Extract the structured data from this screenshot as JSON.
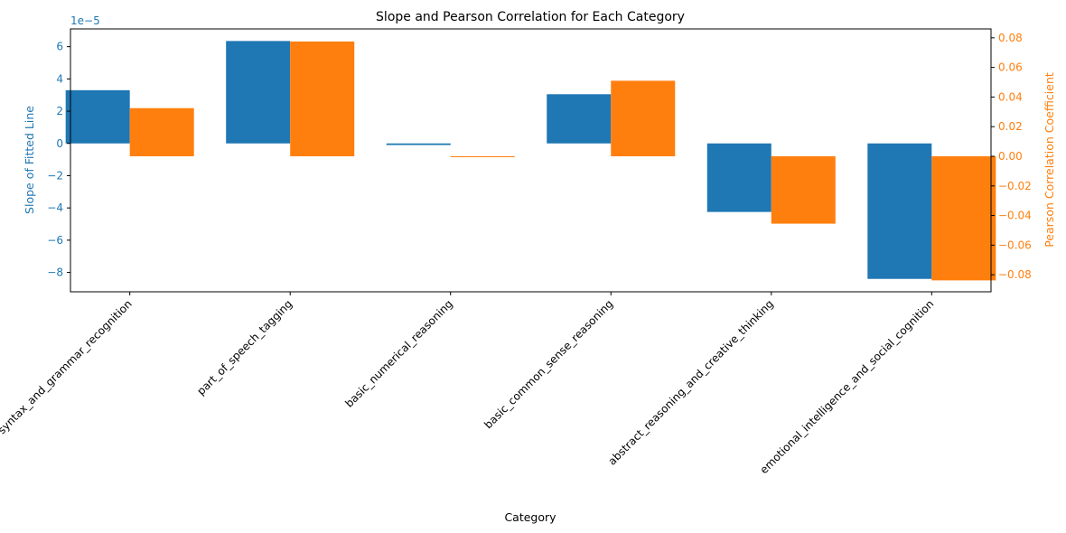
{
  "chart_data": {
    "type": "bar",
    "title": "Slope and Pearson Correlation for Each Category",
    "xlabel": "Category",
    "ylabel_left": "Slope of Fitted Line",
    "ylabel_right": "Pearson Correlation Coefficient",
    "left_offset_text": "1e−5",
    "categories": [
      "syntax_and_grammar_recognition",
      "part_of_speech_tagging",
      "basic_numerical_reasoning",
      "basic_common_sense_reasoning",
      "abstract_reasoning_and_creative_thinking",
      "emotional_intelligence_and_social_cognition"
    ],
    "series": [
      {
        "name": "Slope of Fitted Line",
        "axis": "left",
        "color": "#1f77b4",
        "values": [
          3.3e-05,
          6.35e-05,
          -1e-06,
          3.05e-05,
          -4.25e-05,
          -8.4e-05
        ]
      },
      {
        "name": "Pearson Correlation Coefficient",
        "axis": "right",
        "color": "#ff7f0e",
        "values": [
          0.0325,
          0.0775,
          -0.0005,
          0.051,
          -0.0455,
          -0.0838
        ]
      }
    ],
    "ylim_left": [
      -9.2e-05,
      7.1e-05
    ],
    "ylim_right": [
      -0.0915,
      0.086
    ],
    "yticks_left": [
      {
        "value": 6e-05,
        "label": "6"
      },
      {
        "value": 4e-05,
        "label": "4"
      },
      {
        "value": 2e-05,
        "label": "2"
      },
      {
        "value": 0,
        "label": "0"
      },
      {
        "value": -2e-05,
        "label": "−2"
      },
      {
        "value": -4e-05,
        "label": "−4"
      },
      {
        "value": -6e-05,
        "label": "−6"
      },
      {
        "value": -8e-05,
        "label": "−8"
      }
    ],
    "yticks_right": [
      {
        "value": 0.08,
        "label": "0.08"
      },
      {
        "value": 0.06,
        "label": "0.06"
      },
      {
        "value": 0.04,
        "label": "0.04"
      },
      {
        "value": 0.02,
        "label": "0.02"
      },
      {
        "value": 0.0,
        "label": "0.00"
      },
      {
        "value": -0.02,
        "label": "−0.02"
      },
      {
        "value": -0.04,
        "label": "−0.04"
      },
      {
        "value": -0.06,
        "label": "−0.06"
      },
      {
        "value": -0.08,
        "label": "−0.08"
      }
    ],
    "grid": false,
    "legend": "none"
  }
}
